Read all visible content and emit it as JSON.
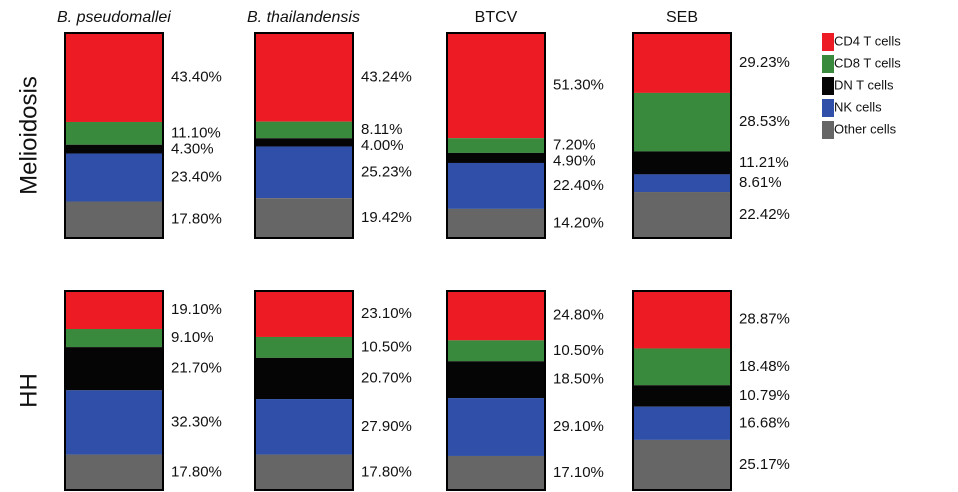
{
  "chart_data": {
    "type": "stacked-bar",
    "rows": [
      "Melioidosis",
      "HH"
    ],
    "categories": [
      "B. pseudomallei",
      "B. thailandensis",
      "BTCV",
      "SEB"
    ],
    "series": [
      {
        "name": "CD4 T cells",
        "color": "#ed1c24",
        "values": [
          [
            43.4,
            43.24,
            51.3,
            29.23
          ],
          [
            19.1,
            23.1,
            24.8,
            28.87
          ]
        ],
        "value_labels": [
          [
            "43.40%",
            "43.24%",
            "51.30%",
            "29.23%"
          ],
          [
            "19.10%",
            "23.10%",
            "24.80%",
            "28.87%"
          ]
        ]
      },
      {
        "name": "CD8 T cells",
        "color": "#3a8a3e",
        "values": [
          [
            11.1,
            8.11,
            7.2,
            28.53
          ],
          [
            9.1,
            10.5,
            10.5,
            18.48
          ]
        ],
        "value_labels": [
          [
            "11.10%",
            "8.11%",
            "7.20%",
            "28.53%"
          ],
          [
            "9.10%",
            "10.50%",
            "10.50%",
            "18.48%"
          ]
        ]
      },
      {
        "name": "DN T cells",
        "color": "#050505",
        "values": [
          [
            4.3,
            4.0,
            4.9,
            11.21
          ],
          [
            21.7,
            20.7,
            18.5,
            10.79
          ]
        ],
        "value_labels": [
          [
            "4.30%",
            "4.00%",
            "4.90%",
            "11.21%"
          ],
          [
            "21.70%",
            "20.70%",
            "18.50%",
            "10.79%"
          ]
        ]
      },
      {
        "name": "NK cells",
        "color": "#2f4fa8",
        "values": [
          [
            23.4,
            25.23,
            22.4,
            8.61
          ],
          [
            32.3,
            27.9,
            29.1,
            16.68
          ]
        ],
        "value_labels": [
          [
            "23.40%",
            "25.23%",
            "22.40%",
            "8.61%"
          ],
          [
            "32.30%",
            "27.90%",
            "29.10%",
            "16.68%"
          ]
        ]
      },
      {
        "name": "Other cells",
        "color": "#666666",
        "values": [
          [
            17.8,
            19.42,
            14.2,
            22.42
          ],
          [
            17.8,
            17.8,
            17.1,
            25.17
          ]
        ],
        "value_labels": [
          [
            "17.80%",
            "19.42%",
            "14.20%",
            "22.42%"
          ],
          [
            "17.80%",
            "17.80%",
            "17.10%",
            "25.17%"
          ]
        ]
      }
    ]
  }
}
